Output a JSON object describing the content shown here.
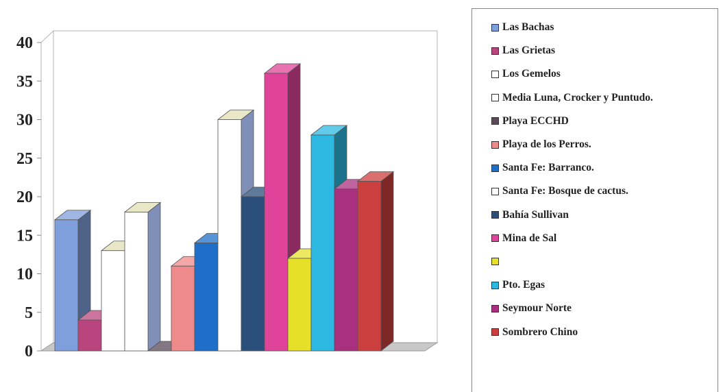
{
  "chart_data": {
    "type": "bar",
    "style": "3d-column",
    "ylim": [
      0,
      40
    ],
    "yticks": [
      0,
      5,
      10,
      15,
      20,
      25,
      30,
      35,
      40
    ],
    "grid": false,
    "legend_position": "right",
    "series": [
      {
        "name": "Las Bachas",
        "value": 17,
        "color": "#7f9edc"
      },
      {
        "name": "Las Grietas",
        "value": 4,
        "color": "#b8457e"
      },
      {
        "name": "Los Gemelos",
        "value": 13,
        "color": "#ffffff"
      },
      {
        "name": "Media Luna, Crocker y Puntudo.",
        "value": 18,
        "color": "#ffffff"
      },
      {
        "name": "Playa ECCHD",
        "value": 0,
        "color": "#5a4a5a"
      },
      {
        "name": "Playa de los Perros.",
        "value": 11,
        "color": "#ef8a8a"
      },
      {
        "name": "Santa Fe: Barranco.",
        "value": 14,
        "color": "#1f6fc9"
      },
      {
        "name": "Santa Fe: Bosque de cactus.",
        "value": 30,
        "color": "#ffffff"
      },
      {
        "name": "Bahía Sullivan",
        "value": 20,
        "color": "#2a4f7a"
      },
      {
        "name": "Mina de Sal",
        "value": 36,
        "color": "#e0449a"
      },
      {
        "name": "",
        "value": 12,
        "color": "#e6e02a"
      },
      {
        "name": "Pto. Egas",
        "value": 28,
        "color": "#2cb8e0"
      },
      {
        "name": "Seymour Norte",
        "value": 21,
        "color": "#a8307e"
      },
      {
        "name": "Sombrero Chino",
        "value": 22,
        "color": "#cc3f3f"
      }
    ]
  }
}
